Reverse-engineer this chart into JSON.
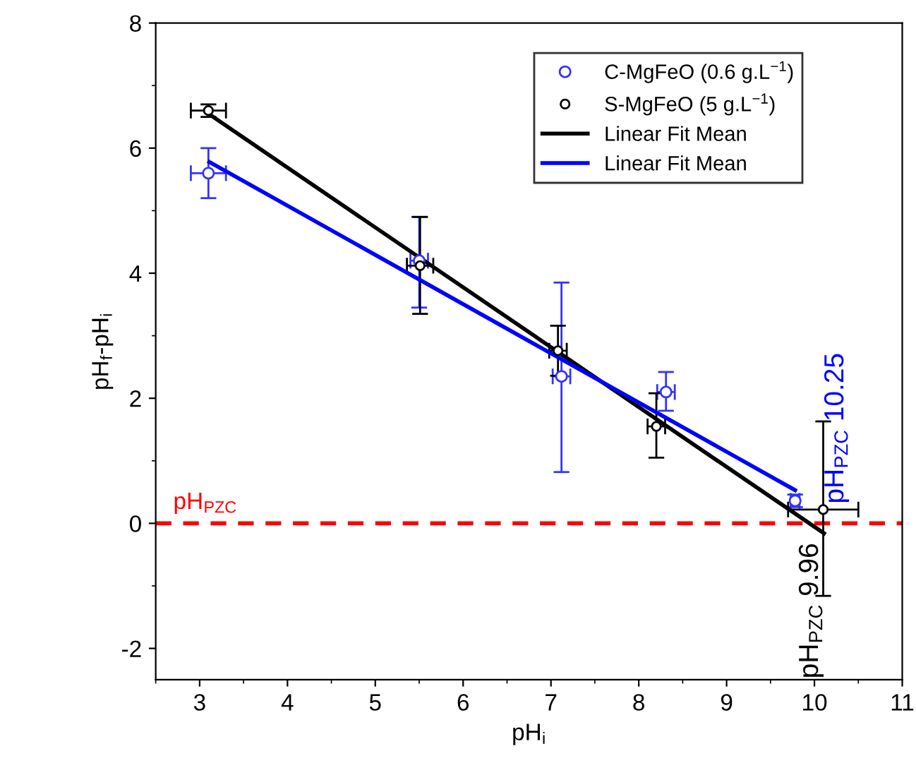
{
  "chart_data": {
    "type": "scatter",
    "xlabel": "pH$_{i}$",
    "ylabel": "pH$_{f}$-pH$_{i}$",
    "xlim": [
      2.5,
      11
    ],
    "xticks": [
      3,
      4,
      5,
      6,
      7,
      8,
      9,
      10,
      11
    ],
    "ylim": [
      -2.5,
      8
    ],
    "yticks": [
      -2,
      0,
      2,
      4,
      6,
      8
    ],
    "grid": false,
    "legend": "top right",
    "series": [
      {
        "name": "C-MgFeO (0.6 g.L$^{−1}$)",
        "marker": "circle",
        "color": "#3333ff",
        "x": [
          3.1,
          5.5,
          7.12,
          8.31,
          9.78
        ],
        "values": [
          5.6,
          4.2,
          2.35,
          2.1,
          0.36
        ],
        "errors": [
          0.4,
          [
            3.45,
            4.9
          ],
          [
            0.82,
            3.85
          ],
          [
            1.8,
            2.42
          ],
          0.1
        ],
        "xerrors": [
          0.2,
          0.1,
          0.1,
          0.1,
          0.05
        ]
      },
      {
        "name": "S-MgFeO (5 g.L$^{−1}$)",
        "marker": "circle",
        "color": "#000000",
        "x": [
          3.1,
          5.51,
          7.08,
          8.2,
          10.1
        ],
        "values": [
          6.6,
          4.12,
          2.76,
          1.55,
          0.22
        ],
        "errors": [
          0.1,
          [
            3.35,
            4.9
          ],
          [
            2.36,
            3.16
          ],
          [
            1.05,
            2.08
          ],
          [
            -1.16,
            1.63
          ]
        ],
        "xerrors": [
          0.2,
          0.15,
          0.1,
          0.1,
          0.4
        ]
      },
      {
        "name": "Linear Fit Mean",
        "type": "line",
        "color": "#000000",
        "x": [
          3.1,
          10.11
        ],
        "values": [
          6.55,
          -0.16
        ],
        "line_style": "solid"
      },
      {
        "name": "Linear Fit Mean",
        "type": "line",
        "color": "#0000ff",
        "x": [
          3.11,
          9.78
        ],
        "values": [
          5.78,
          0.53
        ],
        "line_style": "solid"
      }
    ],
    "ref_lines": [
      {
        "axis": "y",
        "value": 0,
        "label": "pH$_{PZC}$",
        "color": "#ff0000",
        "line_style": "dashed"
      }
    ],
    "annotations": [
      {
        "text": "pH$_{PZC}$ 9.96",
        "x": 9.96,
        "y": 0
      },
      {
        "text": "pH$_{PZC}$ 10.25",
        "x": 10.25,
        "y": 0
      }
    ]
  }
}
